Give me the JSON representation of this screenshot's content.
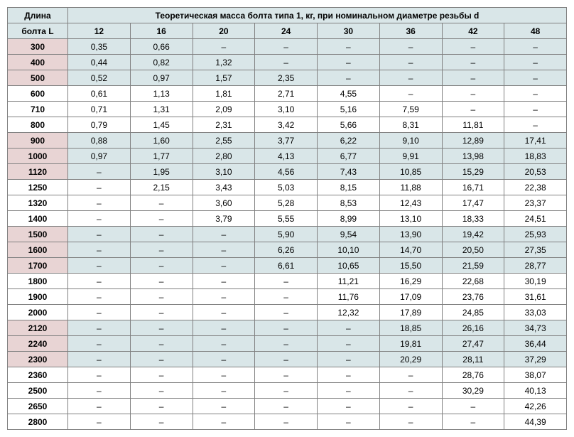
{
  "header": {
    "left_top": "Длина",
    "left_bottom": "болта L",
    "title": "Теоретическая масса болта типа 1, кг, при номинальном диаметре резьбы d",
    "diameters": [
      "12",
      "16",
      "20",
      "24",
      "30",
      "36",
      "42",
      "48"
    ]
  },
  "colors": {
    "header_bg": "#d9e6e8",
    "pink_bg": "#e8d4d4",
    "white_bg": "#ffffff",
    "border": "#808080"
  },
  "bands": [
    {
      "tint": "pink",
      "rows": [
        {
          "L": "300",
          "v": [
            "0,35",
            "0,66",
            "–",
            "–",
            "–",
            "–",
            "–",
            "–"
          ]
        },
        {
          "L": "400",
          "v": [
            "0,44",
            "0,82",
            "1,32",
            "–",
            "–",
            "–",
            "–",
            "–"
          ]
        },
        {
          "L": "500",
          "v": [
            "0,52",
            "0,97",
            "1,57",
            "2,35",
            "–",
            "–",
            "–",
            "–"
          ]
        }
      ]
    },
    {
      "tint": "white",
      "rows": [
        {
          "L": "600",
          "v": [
            "0,61",
            "1,13",
            "1,81",
            "2,71",
            "4,55",
            "–",
            "–",
            "–"
          ]
        },
        {
          "L": "710",
          "v": [
            "0,71",
            "1,31",
            "2,09",
            "3,10",
            "5,16",
            "7,59",
            "–",
            "–"
          ]
        },
        {
          "L": "800",
          "v": [
            "0,79",
            "1,45",
            "2,31",
            "3,42",
            "5,66",
            "8,31",
            "11,81",
            "–"
          ]
        }
      ]
    },
    {
      "tint": "pink",
      "rows": [
        {
          "L": "900",
          "v": [
            "0,88",
            "1,60",
            "2,55",
            "3,77",
            "6,22",
            "9,10",
            "12,89",
            "17,41"
          ]
        },
        {
          "L": "1000",
          "v": [
            "0,97",
            "1,77",
            "2,80",
            "4,13",
            "6,77",
            "9,91",
            "13,98",
            "18,83"
          ]
        },
        {
          "L": "1120",
          "v": [
            "–",
            "1,95",
            "3,10",
            "4,56",
            "7,43",
            "10,85",
            "15,29",
            "20,53"
          ]
        }
      ]
    },
    {
      "tint": "white",
      "rows": [
        {
          "L": "1250",
          "v": [
            "–",
            "2,15",
            "3,43",
            "5,03",
            "8,15",
            "11,88",
            "16,71",
            "22,38"
          ]
        },
        {
          "L": "1320",
          "v": [
            "–",
            "–",
            "3,60",
            "5,28",
            "8,53",
            "12,43",
            "17,47",
            "23,37"
          ]
        },
        {
          "L": "1400",
          "v": [
            "–",
            "–",
            "3,79",
            "5,55",
            "8,99",
            "13,10",
            "18,33",
            "24,51"
          ]
        }
      ]
    },
    {
      "tint": "pink",
      "rows": [
        {
          "L": "1500",
          "v": [
            "–",
            "–",
            "–",
            "5,90",
            "9,54",
            "13,90",
            "19,42",
            "25,93"
          ]
        },
        {
          "L": "1600",
          "v": [
            "–",
            "–",
            "–",
            "6,26",
            "10,10",
            "14,70",
            "20,50",
            "27,35"
          ]
        },
        {
          "L": "1700",
          "v": [
            "–",
            "–",
            "–",
            "6,61",
            "10,65",
            "15,50",
            "21,59",
            "28,77"
          ]
        }
      ]
    },
    {
      "tint": "white",
      "rows": [
        {
          "L": "1800",
          "v": [
            "–",
            "–",
            "–",
            "–",
            "11,21",
            "16,29",
            "22,68",
            "30,19"
          ]
        },
        {
          "L": "1900",
          "v": [
            "–",
            "–",
            "–",
            "–",
            "11,76",
            "17,09",
            "23,76",
            "31,61"
          ]
        },
        {
          "L": "2000",
          "v": [
            "–",
            "–",
            "–",
            "–",
            "12,32",
            "17,89",
            "24,85",
            "33,03"
          ]
        }
      ]
    },
    {
      "tint": "pink",
      "rows": [
        {
          "L": "2120",
          "v": [
            "–",
            "–",
            "–",
            "–",
            "–",
            "18,85",
            "26,16",
            "34,73"
          ]
        },
        {
          "L": "2240",
          "v": [
            "–",
            "–",
            "–",
            "–",
            "–",
            "19,81",
            "27,47",
            "36,44"
          ]
        },
        {
          "L": "2300",
          "v": [
            "–",
            "–",
            "–",
            "–",
            "–",
            "20,29",
            "28,11",
            "37,29"
          ]
        }
      ]
    },
    {
      "tint": "white",
      "rows": [
        {
          "L": "2360",
          "v": [
            "–",
            "–",
            "–",
            "–",
            "–",
            "–",
            "28,76",
            "38,07"
          ]
        },
        {
          "L": "2500",
          "v": [
            "–",
            "–",
            "–",
            "–",
            "–",
            "–",
            "30,29",
            "40,13"
          ]
        },
        {
          "L": "2650",
          "v": [
            "–",
            "–",
            "–",
            "–",
            "–",
            "–",
            "–",
            "42,26"
          ]
        },
        {
          "L": "2800",
          "v": [
            "–",
            "–",
            "–",
            "–",
            "–",
            "–",
            "–",
            "44,39"
          ]
        }
      ]
    }
  ]
}
